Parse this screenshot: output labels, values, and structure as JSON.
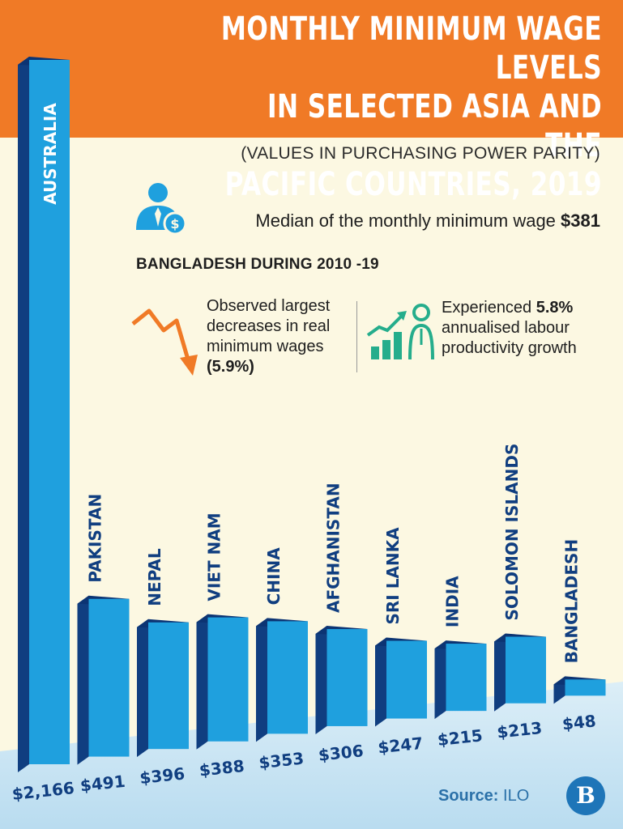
{
  "header": {
    "title_lines": [
      "MONTHLY MINIMUM WAGE LEVELS",
      "IN SELECTED ASIA AND THE",
      "PACIFIC COUNTRIES, 2019"
    ],
    "subtitle": "(VALUES IN PURCHASING POWER PARITY)"
  },
  "median": {
    "label": "Median of the monthly minimum wage",
    "value": "$381",
    "icon": "person-money-icon"
  },
  "bangladesh": {
    "heading": "BANGLADESH DURING 2010 -19",
    "decrease_text": "Observed largest decreases in real minimum wages",
    "decrease_value": "(5.9%)",
    "decrease_icon": "down-trend-arrow-icon",
    "growth_prefix": "Experienced",
    "growth_value": "5.8%",
    "growth_suffix": "annualised labour productivity growth",
    "growth_icon": "rising-bars-worker-icon"
  },
  "colors": {
    "header": "#f07a26",
    "background": "#fcf8e2",
    "bar_front": "#1fa0de",
    "bar_side": "#103e80",
    "bar_top": "#0c3473",
    "accent_green": "#25ad8c",
    "source_blue": "#2a70a8"
  },
  "chart_data": {
    "type": "bar",
    "categories": [
      "AUSTRALIA",
      "PAKISTAN",
      "NEPAL",
      "VIET NAM",
      "CHINA",
      "AFGHANISTAN",
      "SRI LANKA",
      "INDIA",
      "SOLOMON ISLANDS",
      "BANGLADESH"
    ],
    "values": [
      2166,
      491,
      396,
      388,
      353,
      306,
      247,
      215,
      213,
      48
    ],
    "value_labels": [
      "$2,166",
      "$491",
      "$396",
      "$388",
      "$353",
      "$306",
      "$247",
      "$215",
      "$213",
      "$48"
    ],
    "title": "MONTHLY MINIMUM WAGE LEVELS IN SELECTED ASIA AND THE PACIFIC COUNTRIES, 2019",
    "subtitle": "(VALUES IN PURCHASING POWER PARITY)",
    "xlabel": "",
    "ylabel": "",
    "grid": false
  },
  "footer": {
    "source_label": "Source:",
    "source_value": "ILO",
    "logo_letter": "B"
  }
}
